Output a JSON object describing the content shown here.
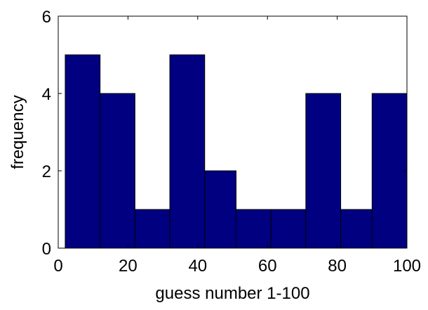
{
  "chart_data": {
    "type": "bar",
    "title": "",
    "xlabel": "guess number 1-100",
    "ylabel": "frequency",
    "xlim": [
      0,
      100
    ],
    "ylim": [
      0,
      6
    ],
    "x_ticks": [
      0,
      20,
      40,
      60,
      80,
      100
    ],
    "y_ticks": [
      0,
      2,
      4,
      6
    ],
    "x_tick_labels": [
      "0",
      "20",
      "40",
      "60",
      "80",
      "100"
    ],
    "y_tick_labels": [
      "0",
      "2",
      "4",
      "6"
    ],
    "bins": [
      {
        "start": 2,
        "end": 12,
        "value": 5
      },
      {
        "start": 12,
        "end": 22,
        "value": 4
      },
      {
        "start": 22,
        "end": 32,
        "value": 1
      },
      {
        "start": 32,
        "end": 42,
        "value": 5
      },
      {
        "start": 42,
        "end": 51,
        "value": 2
      },
      {
        "start": 51,
        "end": 61,
        "value": 1
      },
      {
        "start": 61,
        "end": 71,
        "value": 1
      },
      {
        "start": 71,
        "end": 81,
        "value": 4
      },
      {
        "start": 81,
        "end": 90,
        "value": 1
      },
      {
        "start": 90,
        "end": 100,
        "value": 4
      }
    ],
    "grid": false,
    "legend": "none",
    "bar_color": "#000080",
    "edge_color": "#000000"
  }
}
